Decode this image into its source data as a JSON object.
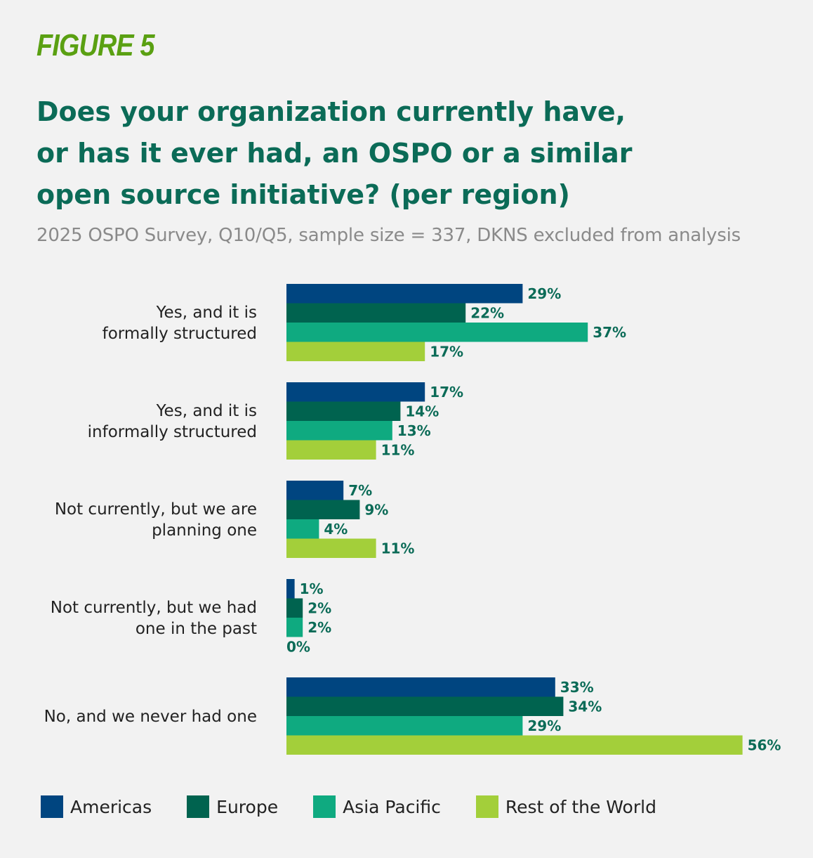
{
  "figure_label": "FIGURE 5",
  "title_lines": [
    "Does your organization currently have,",
    "or has it ever had, an OSPO or a similar",
    "open source initiative? (per region)"
  ],
  "subtitle": "2025 OSPO Survey, Q10/Q5, sample size = 337, DKNS excluded from analysis",
  "colors": {
    "Americas": "#004580",
    "Europe": "#00634f",
    "Asia Pacific": "#0faa80",
    "Rest of the World": "#a3cf3a",
    "value_label": "#0b6b57",
    "figure_label": "#5aa012",
    "title": "#0b6b57"
  },
  "chart_data": {
    "type": "bar",
    "orientation": "horizontal",
    "categories": [
      [
        "Yes, and it is",
        "formally structured"
      ],
      [
        "Yes, and it is",
        "informally structured"
      ],
      [
        "Not currently, but we are",
        "planning one"
      ],
      [
        "Not currently, but we had",
        "one in the past"
      ],
      [
        "No, and we never had one"
      ]
    ],
    "series": [
      {
        "name": "Americas",
        "values": [
          29,
          17,
          7,
          1,
          33
        ]
      },
      {
        "name": "Europe",
        "values": [
          22,
          14,
          9,
          2,
          34
        ]
      },
      {
        "name": "Asia Pacific",
        "values": [
          37,
          13,
          4,
          2,
          29
        ]
      },
      {
        "name": "Rest of the World",
        "values": [
          17,
          11,
          11,
          0,
          56
        ]
      }
    ],
    "value_suffix": "%",
    "xlim": [
      0,
      56
    ],
    "grid": false,
    "legend": "bottom"
  }
}
